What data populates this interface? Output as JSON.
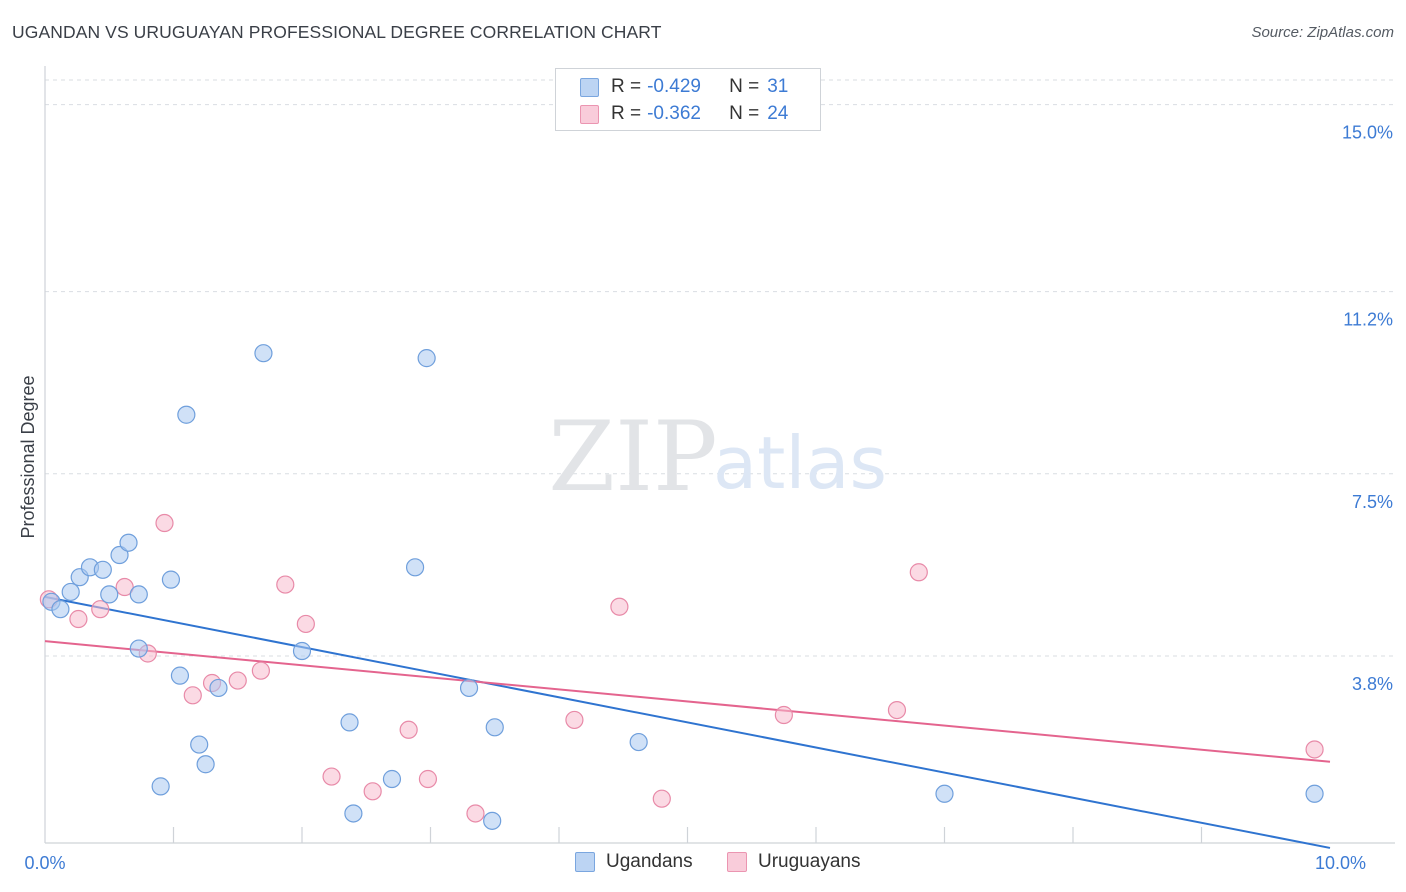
{
  "title": "UGANDAN VS URUGUAYAN PROFESSIONAL DEGREE CORRELATION CHART",
  "source": "Source: ZipAtlas.com",
  "watermark": {
    "zip": "ZIP",
    "atlas": "atlas"
  },
  "colors": {
    "blue_fill": "#a9c8f0",
    "blue_stroke": "#6f9fdc",
    "blue_line": "#2f74d0",
    "pink_fill": "#f7bccd",
    "pink_stroke": "#e88aa8",
    "pink_line": "#e4648e",
    "grid": "#d9dde2",
    "tick_text": "#3d7bd4"
  },
  "legend": {
    "rows": [
      {
        "r_label": "R =",
        "r_value": "-0.429",
        "n_label": "N =",
        "n_value": "31"
      },
      {
        "r_label": "R =",
        "r_value": "-0.362",
        "n_label": "N =",
        "n_value": "24"
      }
    ]
  },
  "bottom_legend": {
    "series1": "Ugandans",
    "series2": "Uruguayans"
  },
  "chart_data": {
    "type": "scatter",
    "title": "UGANDAN VS URUGUAYAN PROFESSIONAL DEGREE CORRELATION CHART",
    "xlabel": "",
    "ylabel": "Professional Degree",
    "xlim": [
      0,
      10
    ],
    "ylim": [
      0,
      15.5
    ],
    "x_tick_labels": [
      "0.0%",
      "10.0%"
    ],
    "y_ticks": [
      3.8,
      7.5,
      11.2,
      15.0
    ],
    "y_tick_labels": [
      "3.8%",
      "7.5%",
      "11.2%",
      "15.0%"
    ],
    "series": [
      {
        "name": "Ugandans",
        "R": -0.429,
        "N": 31,
        "trend": {
          "x": [
            0,
            10
          ],
          "y": [
            5.0,
            -0.1
          ]
        },
        "points": [
          {
            "x": 0.05,
            "y": 4.9
          },
          {
            "x": 0.12,
            "y": 4.75
          },
          {
            "x": 0.2,
            "y": 5.1
          },
          {
            "x": 0.27,
            "y": 5.4
          },
          {
            "x": 0.35,
            "y": 5.6
          },
          {
            "x": 0.45,
            "y": 5.55
          },
          {
            "x": 0.5,
            "y": 5.05
          },
          {
            "x": 0.58,
            "y": 5.85
          },
          {
            "x": 0.65,
            "y": 6.1
          },
          {
            "x": 0.73,
            "y": 5.05
          },
          {
            "x": 0.98,
            "y": 5.35
          },
          {
            "x": 0.73,
            "y": 3.95
          },
          {
            "x": 1.05,
            "y": 3.4
          },
          {
            "x": 1.35,
            "y": 3.15
          },
          {
            "x": 1.2,
            "y": 2.0
          },
          {
            "x": 1.25,
            "y": 1.6
          },
          {
            "x": 0.9,
            "y": 1.15
          },
          {
            "x": 1.1,
            "y": 8.7
          },
          {
            "x": 1.7,
            "y": 9.95
          },
          {
            "x": 2.0,
            "y": 3.9
          },
          {
            "x": 2.37,
            "y": 2.45
          },
          {
            "x": 2.4,
            "y": 0.6
          },
          {
            "x": 2.7,
            "y": 1.3
          },
          {
            "x": 2.88,
            "y": 5.6
          },
          {
            "x": 2.97,
            "y": 9.85
          },
          {
            "x": 3.3,
            "y": 3.15
          },
          {
            "x": 3.5,
            "y": 2.35
          },
          {
            "x": 3.48,
            "y": 0.45
          },
          {
            "x": 4.62,
            "y": 2.05
          },
          {
            "x": 7.0,
            "y": 1.0
          },
          {
            "x": 9.88,
            "y": 1.0
          }
        ]
      },
      {
        "name": "Uruguayans",
        "R": -0.362,
        "N": 24,
        "trend": {
          "x": [
            0,
            10
          ],
          "y": [
            4.1,
            1.65
          ]
        },
        "points": [
          {
            "x": 0.03,
            "y": 4.95
          },
          {
            "x": 0.26,
            "y": 4.55
          },
          {
            "x": 0.43,
            "y": 4.75
          },
          {
            "x": 0.62,
            "y": 5.2
          },
          {
            "x": 0.93,
            "y": 6.5
          },
          {
            "x": 0.8,
            "y": 3.85
          },
          {
            "x": 1.15,
            "y": 3.0
          },
          {
            "x": 1.3,
            "y": 3.25
          },
          {
            "x": 1.5,
            "y": 3.3
          },
          {
            "x": 1.68,
            "y": 3.5
          },
          {
            "x": 1.87,
            "y": 5.25
          },
          {
            "x": 2.03,
            "y": 4.45
          },
          {
            "x": 2.23,
            "y": 1.35
          },
          {
            "x": 2.55,
            "y": 1.05
          },
          {
            "x": 2.83,
            "y": 2.3
          },
          {
            "x": 2.98,
            "y": 1.3
          },
          {
            "x": 3.35,
            "y": 0.6
          },
          {
            "x": 4.12,
            "y": 2.5
          },
          {
            "x": 4.47,
            "y": 4.8
          },
          {
            "x": 4.8,
            "y": 0.9
          },
          {
            "x": 5.75,
            "y": 2.6
          },
          {
            "x": 6.63,
            "y": 2.7
          },
          {
            "x": 6.8,
            "y": 5.5
          },
          {
            "x": 9.88,
            "y": 1.9
          }
        ]
      }
    ]
  }
}
